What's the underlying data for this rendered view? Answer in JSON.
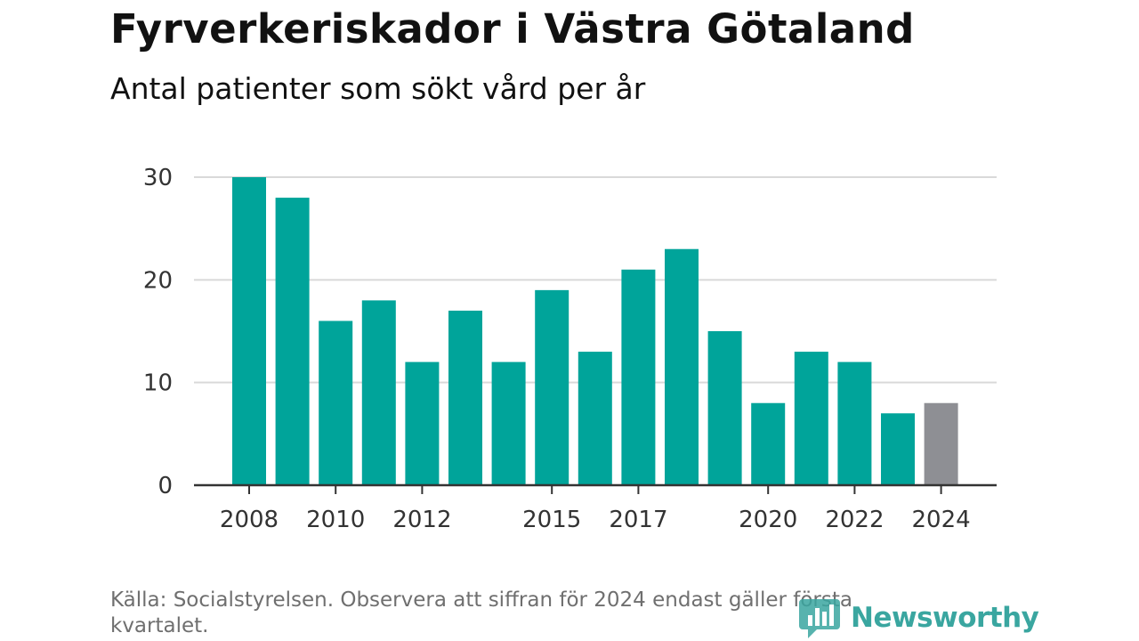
{
  "header": {
    "title": "Fyrverkeriskador i Västra Götaland",
    "subtitle": "Antal patienter som sökt vård per år"
  },
  "footer": {
    "source": "Källa: Socialstyrelsen. Observera att siffran för 2024 endast gäller första kvartalet.",
    "brand": "Newsworthy"
  },
  "colors": {
    "bar": "#00a49a",
    "bar_partial": "#8e8f94",
    "grid": "#d9d9d9",
    "axis": "#333333",
    "brand": "#3aa6a0"
  },
  "chart_data": {
    "type": "bar",
    "title": "Fyrverkeriskador i Västra Götaland",
    "subtitle": "Antal patienter som sökt vård per år",
    "categories": [
      2008,
      2009,
      2010,
      2011,
      2012,
      2013,
      2014,
      2015,
      2016,
      2017,
      2018,
      2019,
      2020,
      2021,
      2022,
      2023,
      2024
    ],
    "values": [
      30,
      28,
      16,
      18,
      12,
      17,
      12,
      19,
      13,
      21,
      23,
      15,
      8,
      13,
      12,
      7,
      8
    ],
    "partial_categories": [
      2024
    ],
    "x_tick_labels": [
      2008,
      2010,
      2012,
      2015,
      2017,
      2020,
      2022,
      2024
    ],
    "y_ticks": [
      0,
      10,
      20,
      30
    ],
    "ylim": [
      0,
      30
    ],
    "grid": true,
    "legend": false,
    "source": "Källa: Socialstyrelsen. Observera att siffran för 2024 endast gäller första kvartalet."
  }
}
